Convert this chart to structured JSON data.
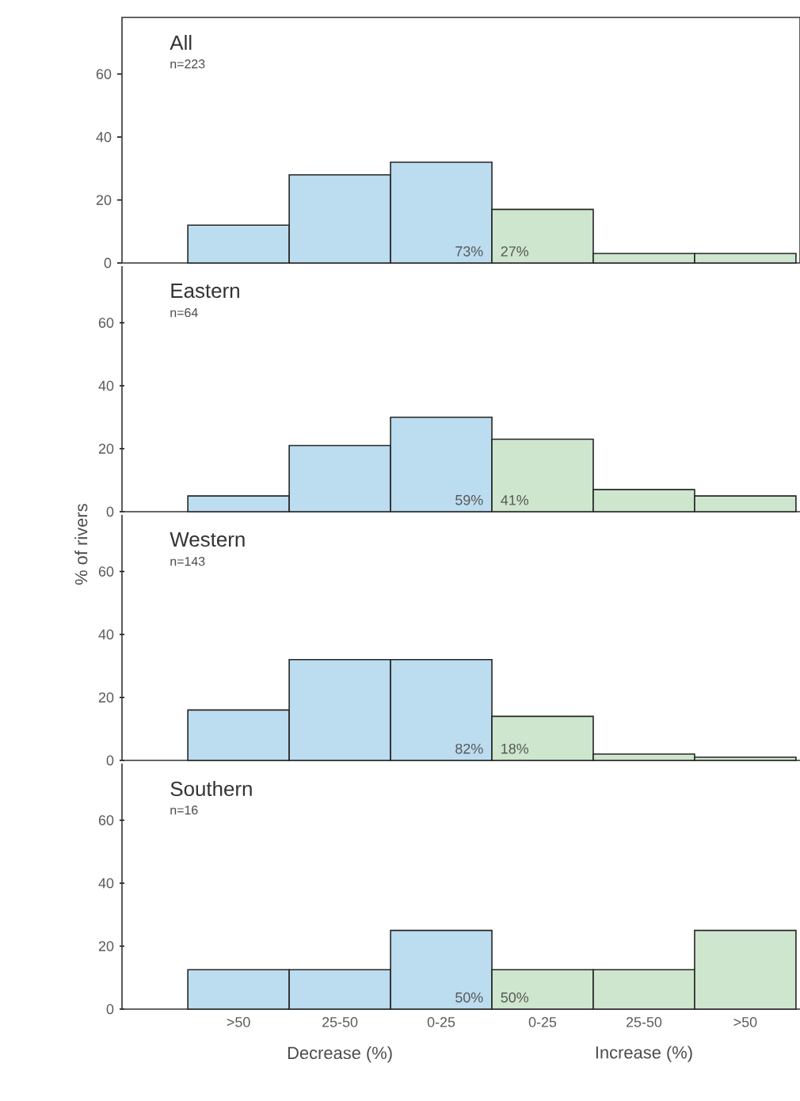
{
  "chart_data": [
    {
      "type": "bar",
      "title": "All",
      "subtitle": "n=223",
      "categories": [
        null,
        null,
        null,
        null,
        null,
        null
      ],
      "values": [
        12,
        28,
        32,
        17,
        3,
        3
      ],
      "colors": [
        "#bcdcef",
        "#bcdcef",
        "#bcdcef",
        "#cde6cd",
        "#cde6cd",
        "#cde6cd"
      ],
      "ylim": [
        0,
        78
      ],
      "yticks": [
        0,
        20,
        40,
        60
      ],
      "grid": false,
      "annotations": [
        "73%",
        "27%"
      ]
    },
    {
      "type": "bar",
      "title": "Eastern",
      "subtitle": "n=64",
      "categories": [
        null,
        null,
        null,
        null,
        null,
        null
      ],
      "values": [
        5,
        21,
        30,
        23,
        7,
        5
      ],
      "colors": [
        "#bcdcef",
        "#bcdcef",
        "#bcdcef",
        "#cde6cd",
        "#cde6cd",
        "#cde6cd"
      ],
      "ylim": [
        0,
        78
      ],
      "yticks": [
        0,
        20,
        40,
        60
      ],
      "grid": false,
      "annotations": [
        "59%",
        "41%"
      ]
    },
    {
      "type": "bar",
      "title": "Western",
      "subtitle": "n=143",
      "ylabel": "% of rivers",
      "categories": [
        null,
        null,
        null,
        null,
        null,
        null
      ],
      "values": [
        16,
        32,
        32,
        14,
        2,
        1
      ],
      "colors": [
        "#bcdcef",
        "#bcdcef",
        "#bcdcef",
        "#cde6cd",
        "#cde6cd",
        "#cde6cd"
      ],
      "ylim": [
        0,
        78
      ],
      "yticks": [
        0,
        20,
        40,
        60
      ],
      "grid": false,
      "annotations": [
        "82%",
        "18%"
      ]
    },
    {
      "type": "bar",
      "title": "Southern",
      "subtitle": "n=16",
      "xlabel": "Decrease (%)",
      "categories": [
        ">50",
        "25-50",
        "0-25",
        "0-25",
        "25-50",
        ">50"
      ],
      "values": [
        12.5,
        12.5,
        25,
        12.5,
        12.5,
        25
      ],
      "colors": [
        "#bcdcef",
        "#bcdcef",
        "#bcdcef",
        "#cde6cd",
        "#cde6cd",
        "#cde6cd"
      ],
      "ylim": [
        0,
        78
      ],
      "yticks": [
        0,
        20,
        40,
        60
      ],
      "grid": false,
      "annotations": [
        "50%",
        "50%",
        "Increase (%)"
      ]
    }
  ]
}
